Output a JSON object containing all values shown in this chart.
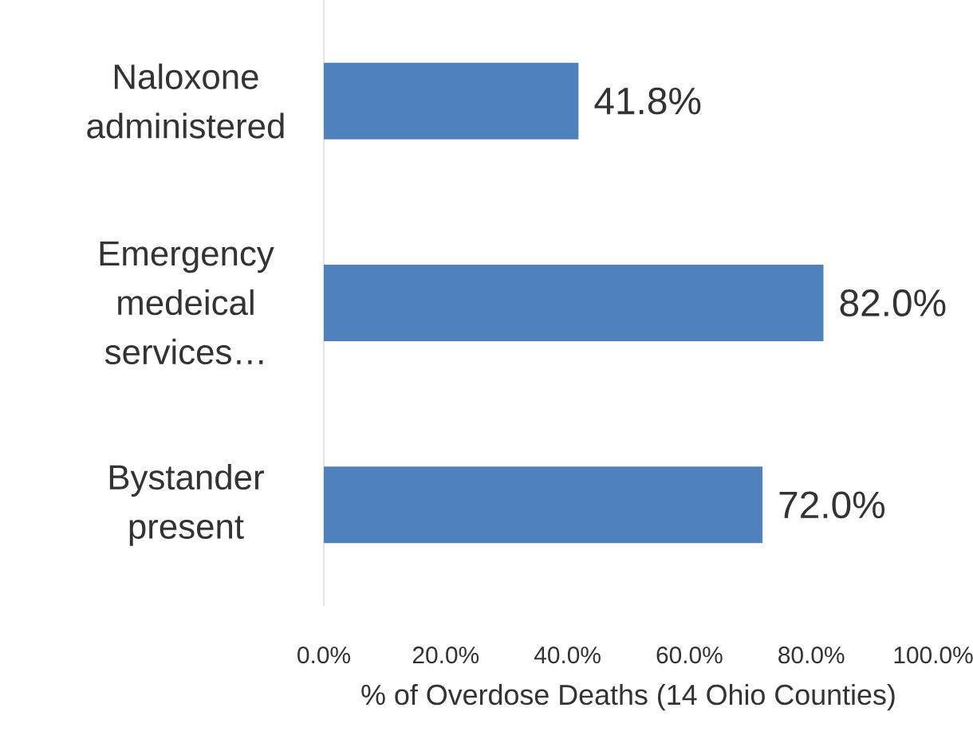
{
  "chart_data": {
    "type": "bar",
    "orientation": "horizontal",
    "xlabel": "% of Overdose Deaths (14 Ohio Counties)",
    "categories": [
      "Naloxone administered",
      "Emergency medeical services…",
      "Bystander present"
    ],
    "values": [
      41.8,
      82.0,
      72.0
    ],
    "value_labels": [
      "41.8%",
      "82.0%",
      "72.0%"
    ],
    "color": "#4f81bd",
    "xlim": [
      0,
      100
    ],
    "xticks": [
      {
        "value": 0,
        "label": "0.0%"
      },
      {
        "value": 20,
        "label": "20.0%"
      },
      {
        "value": 40,
        "label": "40.0%"
      },
      {
        "value": 60,
        "label": "60.0%"
      },
      {
        "value": 80,
        "label": "80.0%"
      },
      {
        "value": 100,
        "label": "100.0%"
      }
    ]
  }
}
